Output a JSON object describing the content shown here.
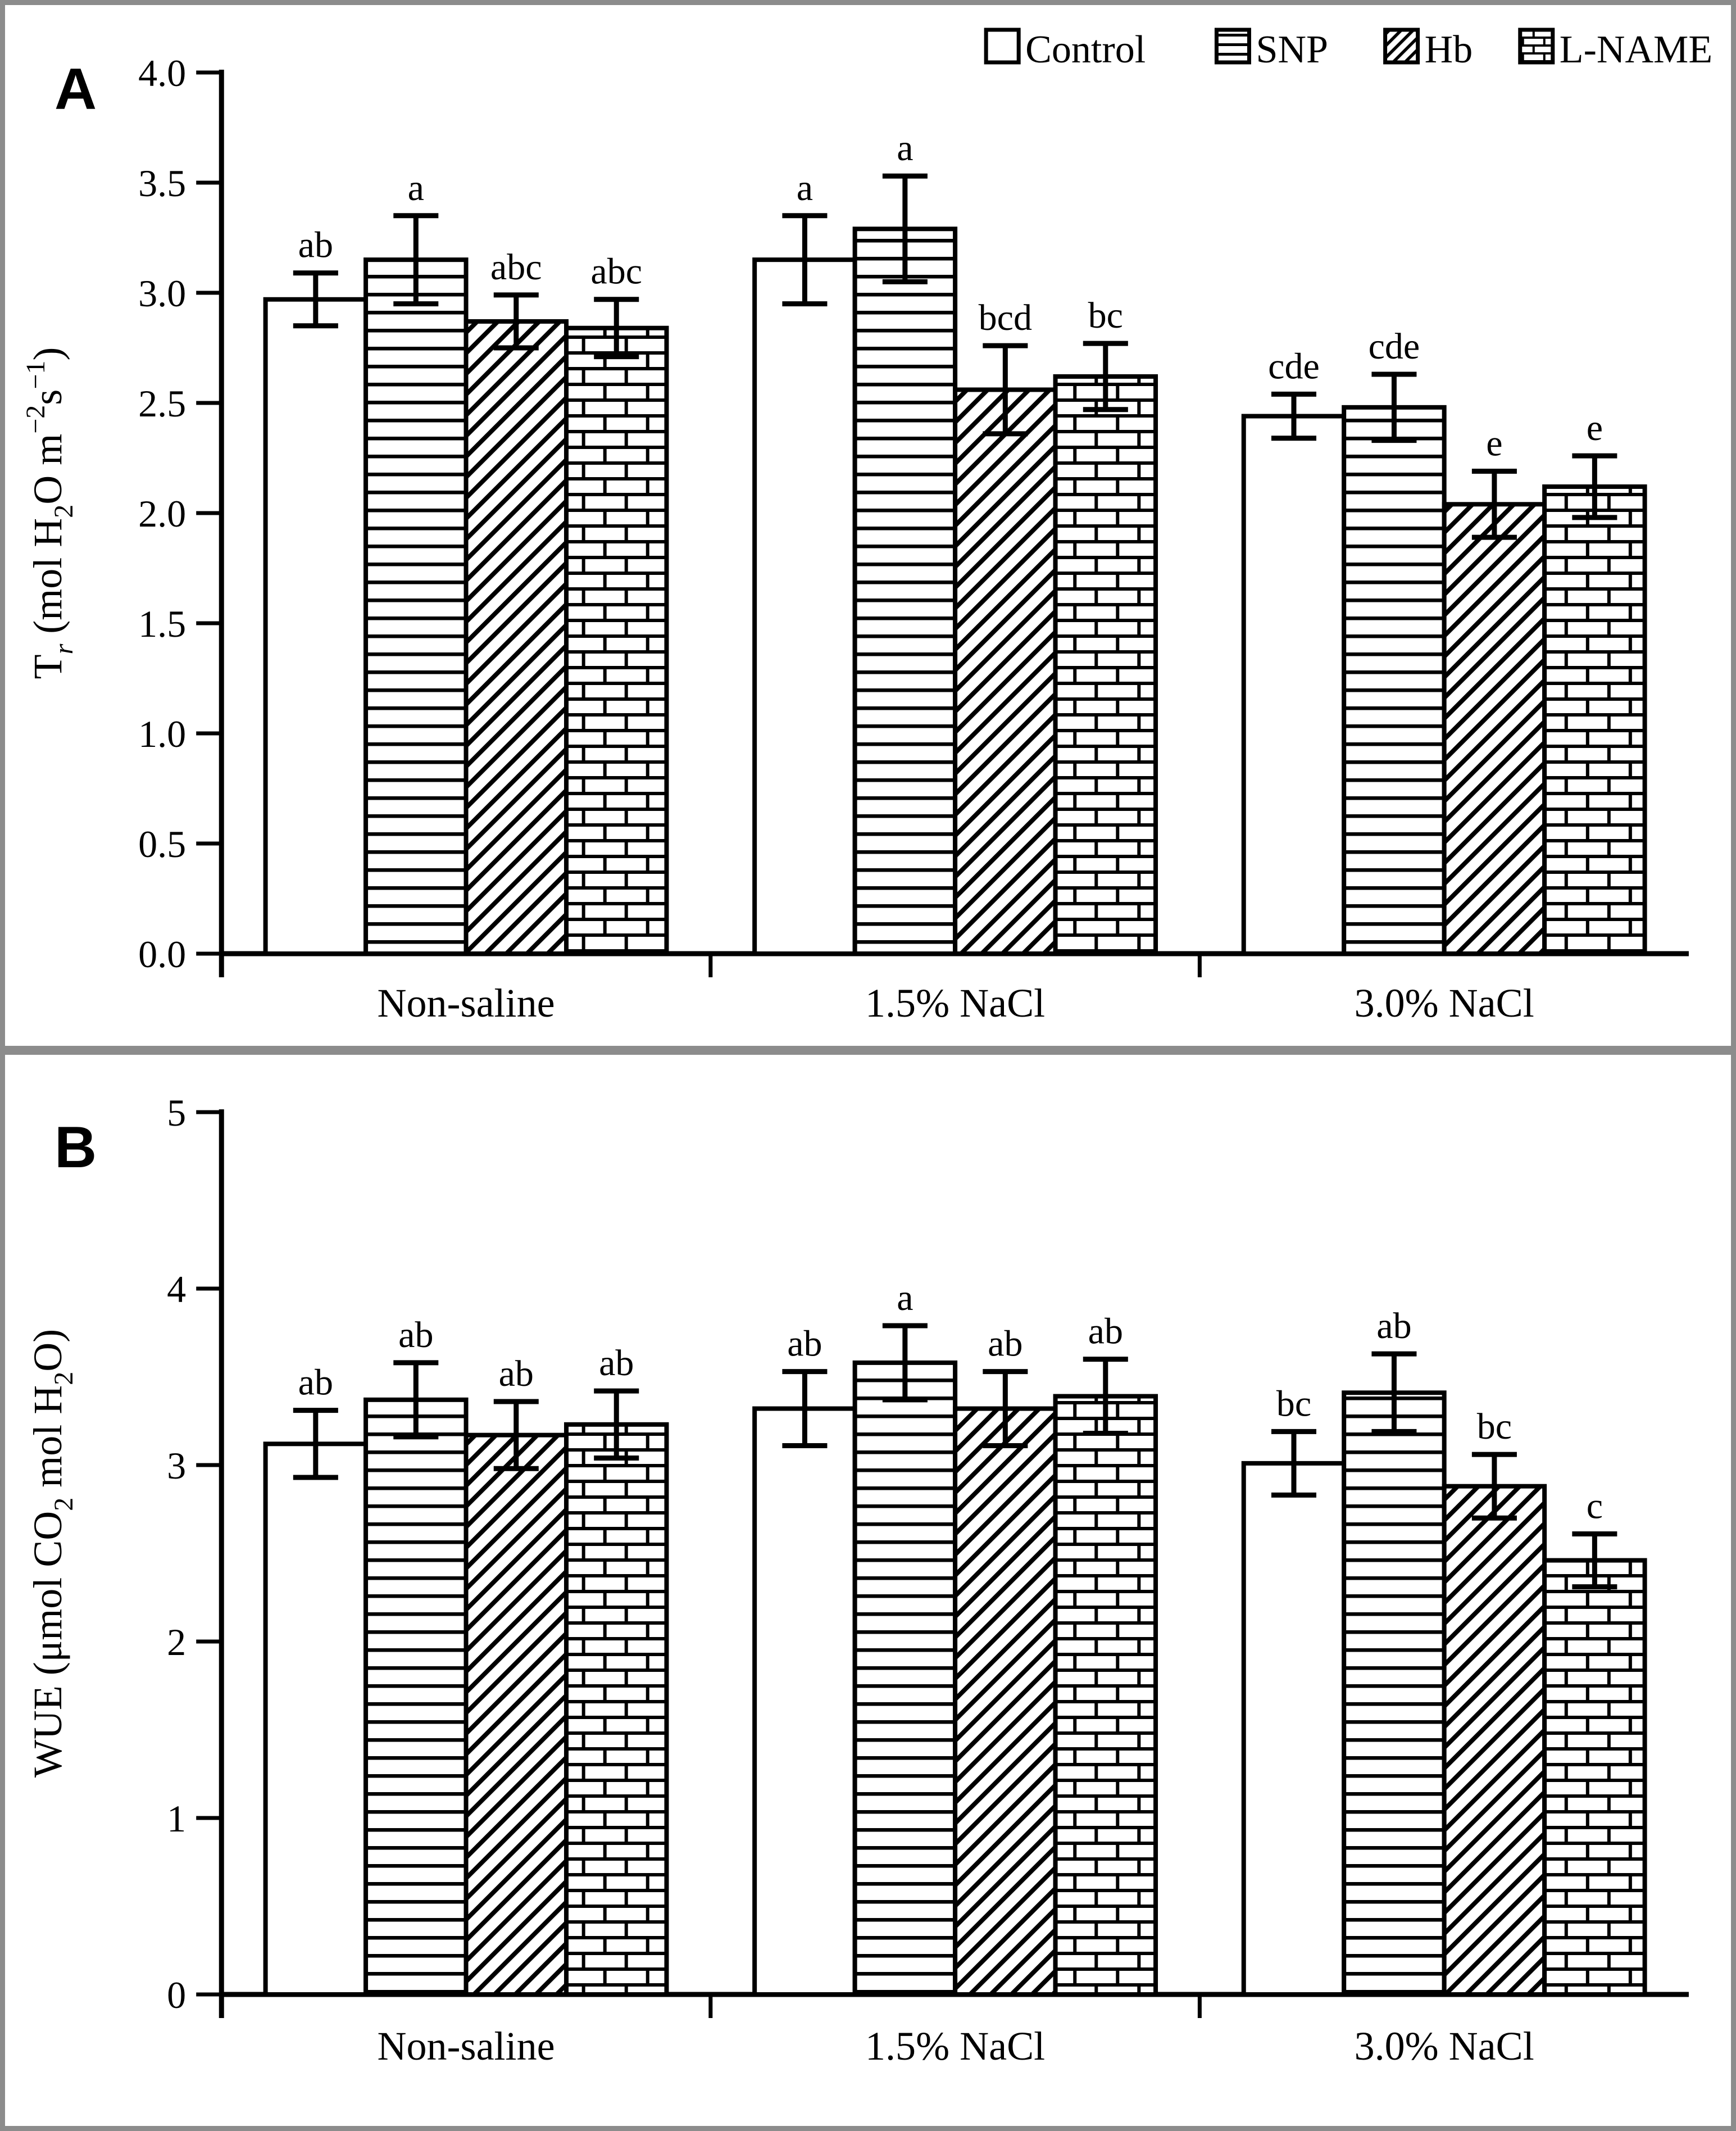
{
  "figure": {
    "border_color": "#8c8c8c",
    "background": "#ffffff"
  },
  "legend": {
    "items": [
      {
        "label": "Control",
        "pattern": "plain"
      },
      {
        "label": "SNP",
        "pattern": "hlines"
      },
      {
        "label": "Hb",
        "pattern": "diag"
      },
      {
        "label": "L-NAME",
        "pattern": "brick"
      }
    ]
  },
  "chart_data": [
    {
      "type": "bar",
      "panel_label": "A",
      "ylabel": "Tr (mol H2O m-2s-1)",
      "ylabel_segments": [
        {
          "t": "T"
        },
        {
          "t": "r",
          "s": "sub-i"
        },
        {
          "t": " (mol H"
        },
        {
          "t": "2",
          "s": "sub"
        },
        {
          "t": "O m"
        },
        {
          "t": "−2",
          "s": "sup"
        },
        {
          "t": "s"
        },
        {
          "t": "−1",
          "s": "sup"
        },
        {
          "t": ")"
        }
      ],
      "ylim": [
        0,
        4
      ],
      "ytick_step": 0.5,
      "ytick_decimals": 1,
      "grid": false,
      "legend_position": "top-right",
      "legend_visible": true,
      "categories": [
        "Non-saline",
        "1.5% NaCl",
        "3.0% NaCl"
      ],
      "series": [
        {
          "name": "Control",
          "pattern": "plain",
          "values": [
            2.97,
            3.15,
            2.44
          ],
          "errors": [
            0.12,
            0.2,
            0.1
          ],
          "letters": [
            "ab",
            "a",
            "cde"
          ]
        },
        {
          "name": "SNP",
          "pattern": "hlines",
          "values": [
            3.15,
            3.29,
            2.48
          ],
          "errors": [
            0.2,
            0.24,
            0.15
          ],
          "letters": [
            "a",
            "a",
            "cde"
          ]
        },
        {
          "name": "Hb",
          "pattern": "diag",
          "values": [
            2.87,
            2.56,
            2.04
          ],
          "errors": [
            0.12,
            0.2,
            0.15
          ],
          "letters": [
            "abc",
            "bcd",
            "e"
          ]
        },
        {
          "name": "L-NAME",
          "pattern": "brick",
          "values": [
            2.84,
            2.62,
            2.12
          ],
          "errors": [
            0.13,
            0.15,
            0.14
          ],
          "letters": [
            "abc",
            "bc",
            "e"
          ]
        }
      ]
    },
    {
      "type": "bar",
      "panel_label": "B",
      "ylabel": "WUE (umol CO2 mol H2O)",
      "ylabel_segments": [
        {
          "t": "WUE (μmol CO"
        },
        {
          "t": "2",
          "s": "sub"
        },
        {
          "t": " mol H"
        },
        {
          "t": "2",
          "s": "sub"
        },
        {
          "t": "O)"
        }
      ],
      "ylim": [
        0,
        5
      ],
      "ytick_step": 1,
      "ytick_decimals": 0,
      "grid": false,
      "legend_visible": false,
      "categories": [
        "Non-saline",
        "1.5% NaCl",
        "3.0% NaCl"
      ],
      "series": [
        {
          "name": "Control",
          "pattern": "plain",
          "values": [
            3.12,
            3.32,
            3.01
          ],
          "errors": [
            0.19,
            0.21,
            0.18
          ],
          "letters": [
            "ab",
            "ab",
            "bc"
          ]
        },
        {
          "name": "SNP",
          "pattern": "hlines",
          "values": [
            3.37,
            3.58,
            3.41
          ],
          "errors": [
            0.21,
            0.21,
            0.22
          ],
          "letters": [
            "ab",
            "a",
            "ab"
          ]
        },
        {
          "name": "Hb",
          "pattern": "diag",
          "values": [
            3.17,
            3.32,
            2.88
          ],
          "errors": [
            0.19,
            0.21,
            0.18
          ],
          "letters": [
            "ab",
            "ab",
            "bc"
          ]
        },
        {
          "name": "L-NAME",
          "pattern": "brick",
          "values": [
            3.23,
            3.39,
            2.46
          ],
          "errors": [
            0.19,
            0.21,
            0.15
          ],
          "letters": [
            "ab",
            "ab",
            "c"
          ]
        }
      ]
    }
  ]
}
